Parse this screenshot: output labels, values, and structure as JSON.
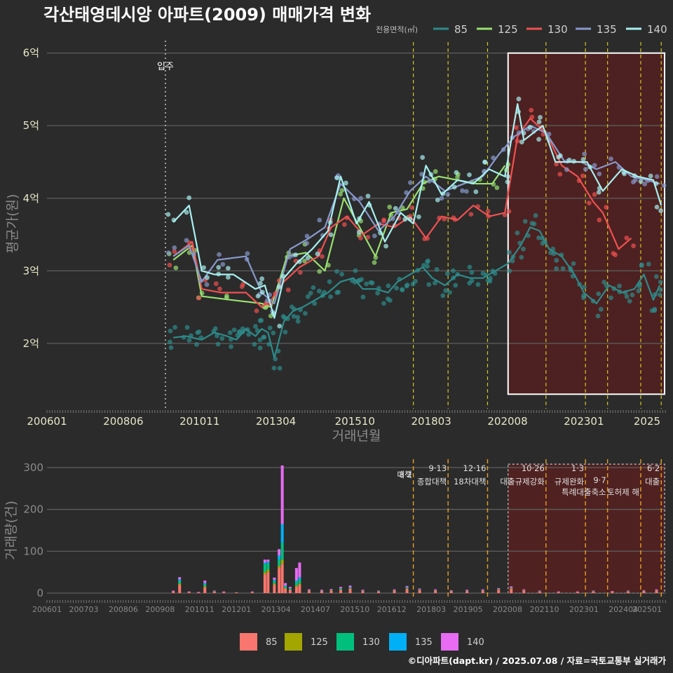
{
  "title": "각산태영데시앙 아파트(2009) 매매가격 변화",
  "footer": "©디아파트(dapt.kr) / 2025.07.08 / 자료=국토교통부 실거래가",
  "chart_data": [
    {
      "type": "line",
      "title": "각산태영데시앙 아파트(2009) 매매가격 변화",
      "xlabel": "거래년월",
      "ylabel": "평균가(원)",
      "x_ticks": [
        "200601",
        "200806",
        "201011",
        "201304",
        "201510",
        "201803",
        "202008",
        "202301",
        "2025"
      ],
      "y_ticks": [
        {
          "v": 2,
          "label": "2억"
        },
        {
          "v": 3,
          "label": "3억"
        },
        {
          "v": 4,
          "label": "4억"
        },
        {
          "v": 5,
          "label": "5억"
        },
        {
          "v": 6,
          "label": "6억"
        }
      ],
      "ylim": [
        1.1,
        6.2
      ],
      "xlim": [
        2006.0,
        2025.6
      ],
      "legend_title": "전용면적(㎡)",
      "move_in": {
        "x": 2009.75,
        "label": "입주"
      },
      "policy_lines": [
        2017.6,
        2018.7,
        2019.95,
        2021.8,
        2023.05,
        2023.75,
        2024.8,
        2025.45
      ],
      "highlight_range": [
        2020.6,
        2025.6
      ],
      "series": [
        {
          "name": "85",
          "color": "#2e8b8b",
          "x": [
            2010.0,
            2010.4,
            2010.9,
            2011.3,
            2011.7,
            2012.0,
            2012.3,
            2012.6,
            2012.8,
            2013.0,
            2013.2,
            2013.5,
            2013.8,
            2014.1,
            2014.5,
            2014.9,
            2015.3,
            2015.7,
            2016.0,
            2016.4,
            2016.8,
            2017.1,
            2017.5,
            2017.9,
            2018.2,
            2018.6,
            2019.0,
            2019.4,
            2019.8,
            2020.2,
            2020.6,
            2021.0,
            2021.3,
            2021.6,
            2021.9,
            2022.3,
            2022.7,
            2023.0,
            2023.4,
            2023.8,
            2024.2,
            2024.6,
            2024.9,
            2025.2,
            2025.4
          ],
          "values": [
            2.08,
            2.1,
            2.05,
            2.15,
            2.1,
            2.05,
            2.2,
            2.1,
            2.2,
            2.15,
            1.8,
            2.3,
            2.45,
            2.5,
            2.6,
            2.7,
            2.85,
            2.9,
            2.75,
            2.75,
            2.7,
            2.85,
            2.95,
            3.05,
            2.9,
            2.8,
            2.95,
            2.9,
            2.9,
            3.0,
            3.1,
            3.35,
            3.6,
            3.55,
            3.3,
            3.2,
            2.95,
            2.7,
            2.55,
            2.8,
            2.7,
            2.75,
            2.95,
            2.6,
            2.8
          ]
        },
        {
          "name": "125",
          "color": "#99e070",
          "x": [
            2010.0,
            2010.6,
            2010.9,
            2011.8,
            2012.8,
            2013.1,
            2013.6,
            2014.2,
            2014.8,
            2015.4,
            2015.9,
            2016.4,
            2016.9,
            2017.4,
            2017.9,
            2018.4,
            2019.0,
            2019.6,
            2020.1,
            2020.5
          ],
          "values": [
            3.15,
            3.35,
            2.65,
            2.6,
            2.55,
            2.5,
            3.2,
            3.25,
            3.0,
            4.0,
            3.6,
            3.2,
            3.8,
            3.85,
            4.2,
            4.3,
            4.25,
            4.2,
            4.2,
            4.45
          ]
        },
        {
          "name": "130",
          "color": "#f05050",
          "x": [
            2010.0,
            2010.6,
            2010.9,
            2011.5,
            2012.3,
            2012.8,
            2013.1,
            2013.5,
            2014.0,
            2014.6,
            2015.0,
            2015.5,
            2016.0,
            2016.5,
            2017.0,
            2017.5,
            2018.0,
            2018.5,
            2019.0,
            2019.5,
            2020.0,
            2020.5,
            2020.9,
            2021.3,
            2021.8,
            2022.3,
            2022.8,
            2023.3,
            2023.6,
            2024.1,
            2024.5
          ],
          "values": [
            3.2,
            3.4,
            2.75,
            2.7,
            2.7,
            2.5,
            2.6,
            2.85,
            3.05,
            3.2,
            3.6,
            3.75,
            3.5,
            3.65,
            3.6,
            3.75,
            3.45,
            3.75,
            3.7,
            3.9,
            3.75,
            3.8,
            4.85,
            5.1,
            4.9,
            4.45,
            4.3,
            3.95,
            3.8,
            3.3,
            3.45
          ]
        },
        {
          "name": "135",
          "color": "#8899cc",
          "x": [
            2010.0,
            2010.5,
            2010.9,
            2011.4,
            2012.3,
            2012.8,
            2013.2,
            2013.7,
            2014.3,
            2014.8,
            2015.3,
            2015.9,
            2016.5,
            2017.0,
            2017.5,
            2018.0,
            2018.6,
            2019.2,
            2019.8,
            2020.3,
            2020.8,
            2021.3,
            2021.8,
            2022.4,
            2022.9,
            2023.4,
            2024.0,
            2024.5,
            2025.0,
            2025.4
          ],
          "values": [
            3.2,
            3.35,
            2.85,
            3.15,
            3.2,
            2.7,
            2.55,
            3.3,
            3.45,
            3.6,
            4.2,
            3.95,
            3.55,
            3.75,
            4.1,
            4.3,
            4.1,
            4.2,
            4.3,
            4.6,
            4.85,
            5.0,
            4.9,
            4.5,
            4.5,
            4.4,
            4.5,
            4.3,
            4.25,
            4.2
          ]
        },
        {
          "name": "140",
          "color": "#a8f0f0",
          "x": [
            2010.0,
            2010.5,
            2010.9,
            2011.3,
            2011.9,
            2012.6,
            2012.9,
            2013.2,
            2013.5,
            2013.9,
            2014.4,
            2014.9,
            2015.3,
            2015.8,
            2016.2,
            2016.7,
            2017.2,
            2017.6,
            2018.0,
            2018.5,
            2019.0,
            2019.5,
            2020.0,
            2020.5,
            2020.9,
            2021.1,
            2021.4,
            2021.7,
            2022.1,
            2022.6,
            2023.1,
            2023.6,
            2024.2,
            2024.7,
            2025.2,
            2025.45
          ],
          "values": [
            3.67,
            3.9,
            3.0,
            2.95,
            2.95,
            2.75,
            2.8,
            2.35,
            2.9,
            3.1,
            3.3,
            3.55,
            4.3,
            3.65,
            3.95,
            3.4,
            3.8,
            3.65,
            4.45,
            4.05,
            4.25,
            4.2,
            4.4,
            4.3,
            5.3,
            4.8,
            4.9,
            5.0,
            4.5,
            4.5,
            4.5,
            4.1,
            4.4,
            4.3,
            4.25,
            3.9
          ]
        }
      ]
    },
    {
      "type": "bar",
      "title": "",
      "xlabel": "",
      "ylabel": "거래량(건)",
      "x_ticks": [
        "200601",
        "200703",
        "200806",
        "200908",
        "201011",
        "201201",
        "201304",
        "201407",
        "201510",
        "201612",
        "201803",
        "201905",
        "202008",
        "202110",
        "202301",
        "202404",
        "202501"
      ],
      "y_ticks": [
        0,
        100,
        200,
        300
      ],
      "ylim": [
        -10,
        320
      ],
      "xlim": [
        2006.0,
        2025.6
      ],
      "legend_position": "bottom",
      "series_names": [
        "85",
        "125",
        "130",
        "135",
        "140"
      ],
      "series_colors": [
        "#f8766d",
        "#a3a500",
        "#00bf7d",
        "#00b0f6",
        "#e76bf3"
      ],
      "policies": [
        {
          "x": 2017.6,
          "date": "8·2",
          "label": "대책"
        },
        {
          "x": 2018.7,
          "date": "9·13",
          "label": "종합대책"
        },
        {
          "x": 2019.95,
          "date": "12·16",
          "label": "18차대책"
        },
        {
          "x": 2021.8,
          "date": "10·26",
          "label": "대출규제강화"
        },
        {
          "x": 2023.05,
          "date": "1·3",
          "label": "규제완화"
        },
        {
          "x": 2023.75,
          "date": "9·7",
          "label": "특례대출축소"
        },
        {
          "x": 2024.8,
          "date": "",
          "label": "토허제 해"
        },
        {
          "x": 2025.45,
          "date": "6·2",
          "label": "대출"
        }
      ],
      "highlight_range": [
        2020.6,
        2025.6
      ],
      "bars": [
        {
          "x": 2010.0,
          "values": [
            4,
            0,
            0,
            0,
            2
          ]
        },
        {
          "x": 2010.2,
          "values": [
            20,
            3,
            6,
            4,
            5
          ]
        },
        {
          "x": 2010.5,
          "values": [
            3,
            0,
            0,
            0,
            1
          ]
        },
        {
          "x": 2010.8,
          "values": [
            2,
            0,
            0,
            0,
            1
          ]
        },
        {
          "x": 2011.0,
          "values": [
            14,
            2,
            5,
            3,
            6
          ]
        },
        {
          "x": 2011.3,
          "values": [
            4,
            0,
            1,
            0,
            1
          ]
        },
        {
          "x": 2011.6,
          "values": [
            3,
            0,
            0,
            0,
            1
          ]
        },
        {
          "x": 2012.0,
          "values": [
            2,
            0,
            0,
            0,
            0
          ]
        },
        {
          "x": 2012.5,
          "values": [
            3,
            0,
            0,
            0,
            1
          ]
        },
        {
          "x": 2012.9,
          "values": [
            45,
            5,
            20,
            3,
            7
          ]
        },
        {
          "x": 2013.0,
          "values": [
            50,
            6,
            15,
            4,
            5
          ]
        },
        {
          "x": 2013.2,
          "values": [
            20,
            3,
            6,
            3,
            5
          ]
        },
        {
          "x": 2013.35,
          "values": [
            60,
            5,
            15,
            10,
            15
          ]
        },
        {
          "x": 2013.45,
          "values": [
            70,
            10,
            40,
            45,
            140
          ]
        },
        {
          "x": 2013.55,
          "values": [
            10,
            2,
            4,
            2,
            6
          ]
        },
        {
          "x": 2013.7,
          "values": [
            8,
            1,
            2,
            1,
            3
          ]
        },
        {
          "x": 2013.9,
          "values": [
            15,
            3,
            8,
            4,
            30
          ]
        },
        {
          "x": 2014.0,
          "values": [
            20,
            3,
            10,
            5,
            35
          ]
        },
        {
          "x": 2014.3,
          "values": [
            6,
            0,
            1,
            0,
            2
          ]
        },
        {
          "x": 2014.7,
          "values": [
            5,
            0,
            1,
            0,
            2
          ]
        },
        {
          "x": 2015.0,
          "values": [
            6,
            1,
            1,
            0,
            2
          ]
        },
        {
          "x": 2015.3,
          "values": [
            8,
            1,
            2,
            1,
            3
          ]
        },
        {
          "x": 2015.6,
          "values": [
            10,
            1,
            2,
            1,
            4
          ]
        },
        {
          "x": 2016.0,
          "values": [
            5,
            0,
            1,
            0,
            2
          ]
        },
        {
          "x": 2016.5,
          "values": [
            4,
            0,
            1,
            0,
            1
          ]
        },
        {
          "x": 2017.0,
          "values": [
            6,
            0,
            1,
            0,
            2
          ]
        },
        {
          "x": 2017.4,
          "values": [
            10,
            1,
            2,
            1,
            3
          ]
        },
        {
          "x": 2017.8,
          "values": [
            7,
            1,
            1,
            0,
            2
          ]
        },
        {
          "x": 2018.3,
          "values": [
            6,
            0,
            1,
            0,
            2
          ]
        },
        {
          "x": 2018.8,
          "values": [
            5,
            0,
            1,
            0,
            1
          ]
        },
        {
          "x": 2019.3,
          "values": [
            5,
            0,
            1,
            0,
            2
          ]
        },
        {
          "x": 2019.8,
          "values": [
            6,
            0,
            1,
            0,
            2
          ]
        },
        {
          "x": 2020.3,
          "values": [
            8,
            1,
            1,
            0,
            2
          ]
        },
        {
          "x": 2020.7,
          "values": [
            10,
            1,
            2,
            0,
            3
          ]
        },
        {
          "x": 2021.1,
          "values": [
            6,
            0,
            1,
            0,
            2
          ]
        },
        {
          "x": 2021.6,
          "values": [
            4,
            0,
            1,
            0,
            1
          ]
        },
        {
          "x": 2022.2,
          "values": [
            3,
            0,
            0,
            0,
            1
          ]
        },
        {
          "x": 2022.8,
          "values": [
            3,
            0,
            0,
            0,
            1
          ]
        },
        {
          "x": 2023.3,
          "values": [
            4,
            0,
            1,
            0,
            1
          ]
        },
        {
          "x": 2023.9,
          "values": [
            4,
            0,
            0,
            0,
            1
          ]
        },
        {
          "x": 2024.4,
          "values": [
            4,
            0,
            1,
            0,
            1
          ]
        },
        {
          "x": 2024.9,
          "values": [
            5,
            0,
            1,
            0,
            1
          ]
        },
        {
          "x": 2025.3,
          "values": [
            6,
            0,
            1,
            0,
            2
          ]
        }
      ]
    }
  ]
}
